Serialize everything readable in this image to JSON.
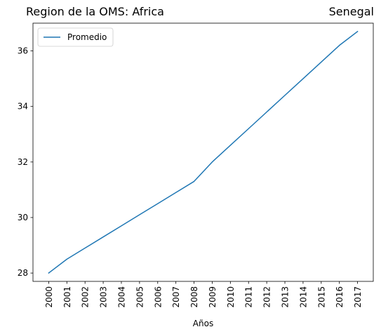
{
  "chart_data": {
    "type": "line",
    "title_left": "Region de la OMS: Africa",
    "title_right": "Senegal",
    "xlabel": "Años",
    "ylabel": "",
    "x": [
      "2000",
      "2001",
      "2002",
      "2003",
      "2004",
      "2005",
      "2006",
      "2007",
      "2008",
      "2009",
      "2010",
      "2011",
      "2012",
      "2013",
      "2014",
      "2015",
      "2016",
      "2017"
    ],
    "series": [
      {
        "name": "Promedio",
        "color": "#1f77b4",
        "values": [
          28.0,
          28.5,
          28.9,
          29.3,
          29.7,
          30.1,
          30.5,
          30.9,
          31.3,
          32.0,
          32.6,
          33.2,
          33.8,
          34.4,
          35.0,
          35.6,
          36.2,
          36.7
        ]
      }
    ],
    "ylim": [
      27.7,
      37.0
    ],
    "yticks": [
      28,
      30,
      32,
      34,
      36
    ],
    "legend_position": "top-left",
    "grid": false
  }
}
